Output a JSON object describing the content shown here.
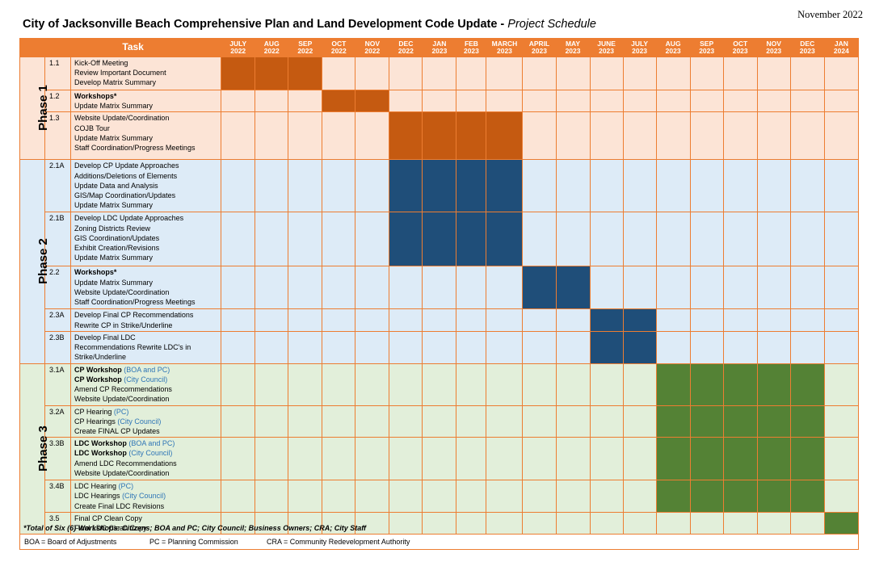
{
  "doc": {
    "date": "November 2022",
    "title": "City of Jacksonville Beach Comprehensive Plan and Land Development Code Update - ",
    "subtitle": "Project Schedule"
  },
  "schedule": {
    "task_header": "Task",
    "months": [
      [
        "JULY",
        "2022"
      ],
      [
        "AUG",
        "2022"
      ],
      [
        "SEP",
        "2022"
      ],
      [
        "OCT",
        "2022"
      ],
      [
        "NOV",
        "2022"
      ],
      [
        "DEC",
        "2022"
      ],
      [
        "JAN",
        "2023"
      ],
      [
        "FEB",
        "2023"
      ],
      [
        "MARCH",
        "2023"
      ],
      [
        "APRIL",
        "2023"
      ],
      [
        "MAY",
        "2023"
      ],
      [
        "JUNE",
        "2023"
      ],
      [
        "JULY",
        "2023"
      ],
      [
        "AUG",
        "2023"
      ],
      [
        "SEP",
        "2023"
      ],
      [
        "OCT",
        "2023"
      ],
      [
        "NOV",
        "2023"
      ],
      [
        "DEC",
        "2023"
      ],
      [
        "JAN",
        "2024"
      ]
    ],
    "phases": [
      {
        "label": "Phase 1",
        "cls": "p1",
        "tasks": [
          {
            "id": "1.1",
            "active": [
              0,
              1,
              2
            ],
            "lines": [
              [
                {
                  "t": "Kick-Off Meeting"
                }
              ],
              [
                {
                  "t": "Review Important Document"
                }
              ],
              [
                {
                  "t": "Develop Matrix Summary"
                }
              ]
            ]
          },
          {
            "id": "1.2",
            "active": [
              3,
              4
            ],
            "lines": [
              [
                {
                  "t": "Workshops*",
                  "b": true
                }
              ],
              [
                {
                  "t": "Update Matrix Summary"
                }
              ]
            ]
          },
          {
            "id": "1.3",
            "active": [
              5,
              6,
              7,
              8
            ],
            "lines": [
              [
                {
                  "t": "Website Update/Coordination"
                }
              ],
              [
                {
                  "t": "COJB Tour"
                }
              ],
              [
                {
                  "t": "Update Matrix Summary"
                }
              ],
              [
                {
                  "t": "Staff Coordination/Progress Meetings"
                }
              ]
            ]
          }
        ]
      },
      {
        "label": "Phase 2",
        "cls": "p2",
        "tasks": [
          {
            "id": "2.1A",
            "active": [
              5,
              6,
              7,
              8
            ],
            "lines": [
              [
                {
                  "t": "Develop CP Update Approaches"
                }
              ],
              [
                {
                  "t": "Additions/Deletions of Elements"
                }
              ],
              [
                {
                  "t": "Update Data and Analysis"
                }
              ],
              [
                {
                  "t": "GIS/Map Coordination/Updates"
                }
              ],
              [
                {
                  "t": "Update Matrix Summary"
                }
              ]
            ]
          },
          {
            "id": "2.1B",
            "active": [
              5,
              6,
              7,
              8
            ],
            "lines": [
              [
                {
                  "t": "Develop LDC Update Approaches"
                }
              ],
              [
                {
                  "t": "Zoning Districts Review"
                }
              ],
              [
                {
                  "t": "GIS Coordination/Updates"
                }
              ],
              [
                {
                  "t": "Exhibit Creation/Revisions"
                }
              ],
              [
                {
                  "t": "Update Matrix Summary"
                }
              ]
            ]
          },
          {
            "id": "2.2",
            "active": [
              9,
              10
            ],
            "lines": [
              [
                {
                  "t": "Workshops*",
                  "b": true
                }
              ],
              [
                {
                  "t": "Update Matrix Summary"
                }
              ],
              [
                {
                  "t": "Website Update/Coordination"
                }
              ],
              [
                {
                  "t": "Staff Coordination/Progress Meetings"
                }
              ]
            ]
          },
          {
            "id": "2.3A",
            "active": [
              11,
              12
            ],
            "lines": [
              [
                {
                  "t": "Develop Final CP Recommendations"
                }
              ],
              [
                {
                  "t": "Rewrite CP in Strike/Underline"
                }
              ]
            ]
          },
          {
            "id": "2.3B",
            "active": [
              11,
              12
            ],
            "lines": [
              [
                {
                  "t": "Develop Final LDC"
                }
              ],
              [
                {
                  "t": "Recommendations Rewrite LDC's in"
                }
              ],
              [
                {
                  "t": "Strike/Underline"
                }
              ]
            ]
          }
        ]
      },
      {
        "label": "Phase 3",
        "cls": "p3",
        "tasks": [
          {
            "id": "3.1A",
            "active": [
              13,
              14,
              15,
              16,
              17
            ],
            "lines": [
              [
                {
                  "t": "CP Workshop",
                  "b": true
                },
                {
                  "t": " (BOA and PC)",
                  "c": "blue"
                }
              ],
              [
                {
                  "t": "CP Workshop",
                  "b": true
                },
                {
                  "t": " (City Council)",
                  "c": "blue"
                }
              ],
              [
                {
                  "t": "Amend CP Recommendations"
                }
              ],
              [
                {
                  "t": "Website Update/Coordination"
                }
              ]
            ]
          },
          {
            "id": "3.2A",
            "active": [
              13,
              14,
              15,
              16,
              17
            ],
            "lines": [
              [
                {
                  "t": "CP Hearing"
                },
                {
                  "t": " (PC)",
                  "c": "blue"
                }
              ],
              [
                {
                  "t": "CP Hearings"
                },
                {
                  "t": " (City Council)",
                  "c": "blue"
                }
              ],
              [
                {
                  "t": "Create FINAL CP Updates"
                }
              ]
            ]
          },
          {
            "id": "3.3B",
            "active": [
              13,
              14,
              15,
              16,
              17
            ],
            "lines": [
              [
                {
                  "t": "LDC Workshop",
                  "b": true
                },
                {
                  "t": " (BOA and PC)",
                  "c": "blue"
                }
              ],
              [
                {
                  "t": "LDC Workshop",
                  "b": true
                },
                {
                  "t": " (City Council)",
                  "c": "blue"
                }
              ],
              [
                {
                  "t": "Amend LDC Recommendations"
                }
              ],
              [
                {
                  "t": "Website Update/Coordination"
                }
              ]
            ]
          },
          {
            "id": "3.4B",
            "active": [
              13,
              14,
              15,
              16,
              17
            ],
            "lines": [
              [
                {
                  "t": "LDC Hearing"
                },
                {
                  "t": " (PC)",
                  "c": "blue"
                }
              ],
              [
                {
                  "t": "LDC Hearings"
                },
                {
                  "t": " (City Council)",
                  "c": "blue"
                }
              ],
              [
                {
                  "t": "Create Final LDC Revisions"
                }
              ]
            ]
          },
          {
            "id": "3.5",
            "active": [
              18
            ],
            "lines": [
              [
                {
                  "t": "Final CP Clean Copy"
                }
              ],
              [
                {
                  "t": "Final LDC Clean Copy"
                }
              ]
            ]
          }
        ]
      }
    ]
  },
  "footnote": {
    "workshops_note": "*Total of Six (6) Workshops: Citizens; BOA and PC; City Council; Business Owners; CRA; City Staff",
    "legend": [
      "BOA = Board of Adjustments",
      "PC = Planning Commission",
      "CRA = Community Redevelopment Authority"
    ]
  },
  "colors": {
    "header_orange": "#ed7d31",
    "phase1_bar": "#c55a11",
    "phase2_bar": "#1f4e79",
    "phase3_bar": "#548235",
    "phase1_bg": "#fce4d6",
    "phase2_bg": "#ddebf7",
    "phase3_bg": "#e2efda",
    "note_blue": "#2e75b6"
  }
}
